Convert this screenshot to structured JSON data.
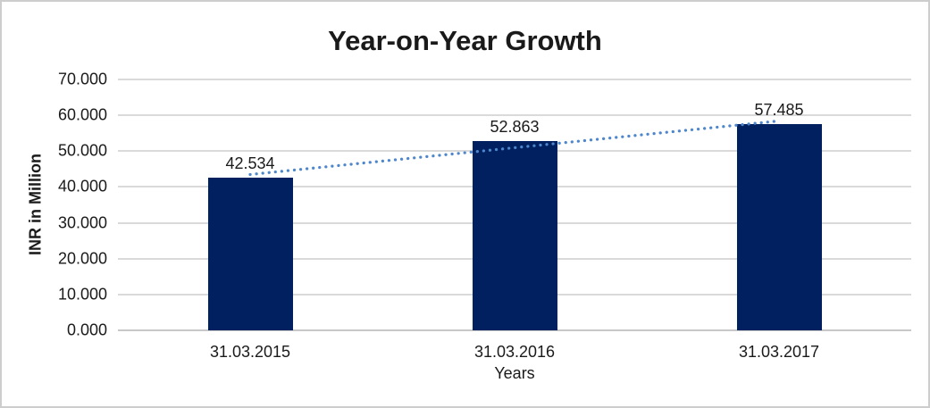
{
  "chart_data": {
    "type": "bar",
    "title": "Year-on-Year Growth",
    "xlabel": "Years",
    "ylabel": "INR in Million",
    "categories": [
      "31.03.2015",
      "31.03.2016",
      "31.03.2017"
    ],
    "values": [
      42.534,
      52.863,
      57.485
    ],
    "data_labels": [
      "42.534",
      "52.863",
      "57.485"
    ],
    "ylim": [
      0,
      70
    ],
    "ytick_step": 10,
    "ytick_labels": [
      "0.000",
      "10.000",
      "20.000",
      "30.000",
      "40.000",
      "50.000",
      "60.000",
      "70.000"
    ],
    "grid": true,
    "legend": "none",
    "bar_color": "#002060",
    "gridline_color": "#dadada",
    "trendline": {
      "type": "linear",
      "style": "dotted",
      "color": "#4e87cc"
    }
  }
}
